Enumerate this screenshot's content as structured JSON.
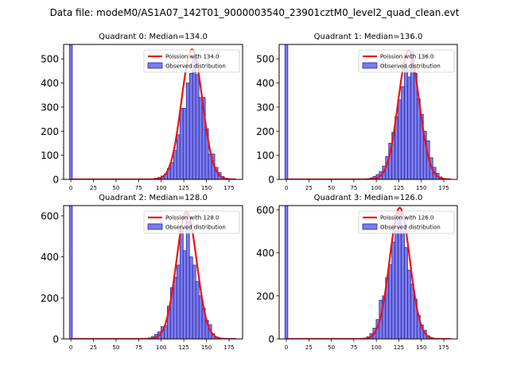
{
  "figure_title": "Data file: modeM0/AS1A07_142T01_9000003540_23901cztM0_level2_quad_clean.evt",
  "colors": {
    "bar_fill": "#7b7bef",
    "bar_edge": "#2a2a9a",
    "curve": "#ee1111"
  },
  "chart_data": [
    {
      "type": "bar",
      "title": "Quadrant 0: Median=134.0",
      "legend": [
        "Poission with 134.0",
        "Observed distribution"
      ],
      "legend_position": "top-right",
      "xlim": [
        -8,
        190
      ],
      "ylim": [
        0,
        560
      ],
      "xticks": [
        0,
        25,
        50,
        75,
        100,
        125,
        150,
        175
      ],
      "yticks": [
        0,
        100,
        200,
        300,
        400,
        500
      ],
      "median": 134.0,
      "poisson_peak": 540,
      "bin_width": 3.5,
      "spike": {
        "x": 0,
        "value": 560
      },
      "bins": [
        {
          "x": 91.0,
          "v": 2
        },
        {
          "x": 94.5,
          "v": 5
        },
        {
          "x": 98.0,
          "v": 8
        },
        {
          "x": 101.5,
          "v": 14
        },
        {
          "x": 105.0,
          "v": 22
        },
        {
          "x": 108.5,
          "v": 45
        },
        {
          "x": 112.0,
          "v": 70
        },
        {
          "x": 115.5,
          "v": 120
        },
        {
          "x": 119.0,
          "v": 185
        },
        {
          "x": 122.5,
          "v": 295
        },
        {
          "x": 126.0,
          "v": 295
        },
        {
          "x": 129.5,
          "v": 400
        },
        {
          "x": 133.0,
          "v": 440
        },
        {
          "x": 136.5,
          "v": 510
        },
        {
          "x": 140.0,
          "v": 435
        },
        {
          "x": 143.5,
          "v": 340
        },
        {
          "x": 147.0,
          "v": 340
        },
        {
          "x": 150.5,
          "v": 210
        },
        {
          "x": 154.0,
          "v": 105
        },
        {
          "x": 157.5,
          "v": 105
        },
        {
          "x": 161.0,
          "v": 50
        },
        {
          "x": 164.5,
          "v": 28
        },
        {
          "x": 168.0,
          "v": 12
        },
        {
          "x": 171.5,
          "v": 5
        }
      ]
    },
    {
      "type": "bar",
      "title": "Quadrant 1: Median=136.0",
      "legend": [
        "Poission with 136.0",
        "Observed distribution"
      ],
      "legend_position": "top-right",
      "xlim": [
        -8,
        190
      ],
      "ylim": [
        0,
        560
      ],
      "xticks": [
        0,
        25,
        50,
        75,
        100,
        125,
        150,
        175
      ],
      "yticks": [
        0,
        100,
        200,
        300,
        400,
        500
      ],
      "median": 136.0,
      "poisson_peak": 535,
      "bin_width": 3.5,
      "spike": {
        "x": 0,
        "value": 560
      },
      "bins": [
        {
          "x": 91.0,
          "v": 3
        },
        {
          "x": 94.5,
          "v": 6
        },
        {
          "x": 98.0,
          "v": 12
        },
        {
          "x": 101.5,
          "v": 20
        },
        {
          "x": 105.0,
          "v": 32
        },
        {
          "x": 108.5,
          "v": 55
        },
        {
          "x": 112.0,
          "v": 95
        },
        {
          "x": 115.5,
          "v": 150
        },
        {
          "x": 119.0,
          "v": 195
        },
        {
          "x": 122.5,
          "v": 260
        },
        {
          "x": 126.0,
          "v": 330
        },
        {
          "x": 129.5,
          "v": 385
        },
        {
          "x": 133.0,
          "v": 470
        },
        {
          "x": 136.5,
          "v": 425
        },
        {
          "x": 140.0,
          "v": 530
        },
        {
          "x": 143.5,
          "v": 440
        },
        {
          "x": 147.0,
          "v": 335
        },
        {
          "x": 150.5,
          "v": 270
        },
        {
          "x": 154.0,
          "v": 200
        },
        {
          "x": 157.5,
          "v": 160
        },
        {
          "x": 161.0,
          "v": 90
        },
        {
          "x": 164.5,
          "v": 50
        },
        {
          "x": 168.0,
          "v": 25
        },
        {
          "x": 171.5,
          "v": 10
        },
        {
          "x": 175.0,
          "v": 4
        }
      ]
    },
    {
      "type": "bar",
      "title": "Quadrant 2: Median=128.0",
      "legend": [
        "Poission with 128.0",
        "Observed distribution"
      ],
      "legend_position": "top-right",
      "xlim": [
        -8,
        190
      ],
      "ylim": [
        0,
        650
      ],
      "xticks": [
        0,
        25,
        50,
        75,
        100,
        125,
        150,
        175
      ],
      "yticks": [
        0,
        200,
        400,
        600
      ],
      "median": 128.0,
      "poisson_peak": 620,
      "bin_width": 3.5,
      "spike": {
        "x": 0,
        "value": 650
      },
      "bins": [
        {
          "x": 84.0,
          "v": 3
        },
        {
          "x": 87.5,
          "v": 5
        },
        {
          "x": 91.0,
          "v": 12
        },
        {
          "x": 94.5,
          "v": 22
        },
        {
          "x": 98.0,
          "v": 35
        },
        {
          "x": 101.5,
          "v": 60
        },
        {
          "x": 105.0,
          "v": 65
        },
        {
          "x": 108.5,
          "v": 160
        },
        {
          "x": 112.0,
          "v": 250
        },
        {
          "x": 115.5,
          "v": 300
        },
        {
          "x": 119.0,
          "v": 360
        },
        {
          "x": 122.5,
          "v": 540
        },
        {
          "x": 126.0,
          "v": 430
        },
        {
          "x": 129.5,
          "v": 610
        },
        {
          "x": 133.0,
          "v": 400
        },
        {
          "x": 136.5,
          "v": 360
        },
        {
          "x": 140.0,
          "v": 280
        },
        {
          "x": 143.5,
          "v": 210
        },
        {
          "x": 147.0,
          "v": 150
        },
        {
          "x": 150.5,
          "v": 90
        },
        {
          "x": 154.0,
          "v": 70
        },
        {
          "x": 157.5,
          "v": 25
        },
        {
          "x": 161.0,
          "v": 10
        },
        {
          "x": 164.5,
          "v": 4
        }
      ]
    },
    {
      "type": "bar",
      "title": "Quadrant 3: Median=126.0",
      "legend": [
        "Poission with 126.0",
        "Observed distribution"
      ],
      "legend_position": "top-right",
      "xlim": [
        -8,
        190
      ],
      "ylim": [
        0,
        620
      ],
      "xticks": [
        0,
        25,
        50,
        75,
        100,
        125,
        150,
        175
      ],
      "yticks": [
        0,
        200,
        400,
        600
      ],
      "median": 126.0,
      "poisson_peak": 610,
      "bin_width": 3.5,
      "spike": {
        "x": 0,
        "value": 620
      },
      "bins": [
        {
          "x": 87.5,
          "v": 4
        },
        {
          "x": 91.0,
          "v": 10
        },
        {
          "x": 94.5,
          "v": 25
        },
        {
          "x": 98.0,
          "v": 50
        },
        {
          "x": 101.5,
          "v": 90
        },
        {
          "x": 105.0,
          "v": 180
        },
        {
          "x": 108.5,
          "v": 200
        },
        {
          "x": 112.0,
          "v": 285
        },
        {
          "x": 115.5,
          "v": 345
        },
        {
          "x": 119.0,
          "v": 450
        },
        {
          "x": 122.5,
          "v": 505
        },
        {
          "x": 126.0,
          "v": 590
        },
        {
          "x": 129.5,
          "v": 500
        },
        {
          "x": 133.0,
          "v": 425
        },
        {
          "x": 136.5,
          "v": 320
        },
        {
          "x": 140.0,
          "v": 255
        },
        {
          "x": 143.5,
          "v": 185
        },
        {
          "x": 147.0,
          "v": 110
        },
        {
          "x": 150.5,
          "v": 65
        },
        {
          "x": 154.0,
          "v": 40
        },
        {
          "x": 157.5,
          "v": 15
        },
        {
          "x": 161.0,
          "v": 6
        }
      ]
    }
  ]
}
